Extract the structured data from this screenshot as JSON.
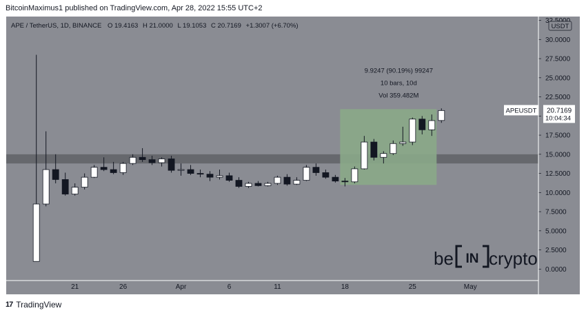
{
  "header": {
    "text": "BitcoinMaximus1 published on TradingView.com, Apr 28, 2022 15:55 UTC+2"
  },
  "footer": {
    "brand": "TradingView",
    "logo": "17"
  },
  "colors": {
    "background": "#8a8c93",
    "axis_panel": "#8a8c93",
    "zone": "#5f6166",
    "highlight": "#8aa888",
    "bull": "#ffffff",
    "bear": "#131722",
    "text": "#131722"
  },
  "chart_data": {
    "type": "candlestick",
    "symbol_line": {
      "title": "APE / TetherUS, 1D, BINANCE",
      "o_label": "O",
      "o_value": "19.4163",
      "h_label": "H",
      "h_value": "21.0000",
      "l_label": "L",
      "l_value": "19.1053",
      "c_label": "C",
      "c_value": "20.7169",
      "change": "+1.3007 (+6.70%)"
    },
    "y_axis": {
      "unit": "USDT",
      "range": [
        -1.5,
        33.0
      ],
      "ticks": [
        "0.0000",
        "2.5000",
        "5.0000",
        "7.5000",
        "10.0000",
        "12.5000",
        "15.0000",
        "17.5000",
        "20.0000",
        "22.5000",
        "25.0000",
        "27.5000",
        "30.0000",
        "32.5000"
      ],
      "tick_values": [
        0,
        2.5,
        5,
        7.5,
        10,
        12.5,
        15,
        17.5,
        20,
        22.5,
        25,
        27.5,
        30,
        32.5
      ]
    },
    "x_axis": {
      "dates": [
        "2022-03-17",
        "2022-03-18",
        "2022-03-19",
        "2022-03-20",
        "2022-03-21",
        "2022-03-22",
        "2022-03-23",
        "2022-03-24",
        "2022-03-25",
        "2022-03-26",
        "2022-03-27",
        "2022-03-28",
        "2022-03-29",
        "2022-03-30",
        "2022-03-31",
        "2022-04-01",
        "2022-04-02",
        "2022-04-03",
        "2022-04-04",
        "2022-04-05",
        "2022-04-06",
        "2022-04-07",
        "2022-04-08",
        "2022-04-09",
        "2022-04-10",
        "2022-04-11",
        "2022-04-12",
        "2022-04-13",
        "2022-04-14",
        "2022-04-15",
        "2022-04-16",
        "2022-04-17",
        "2022-04-18",
        "2022-04-19",
        "2022-04-20",
        "2022-04-21",
        "2022-04-22",
        "2022-04-23",
        "2022-04-24",
        "2022-04-25",
        "2022-04-26",
        "2022-04-27",
        "2022-04-28"
      ],
      "tick_labels": [
        "21",
        "26",
        "Apr",
        "6",
        "11",
        "18",
        "25",
        "May"
      ],
      "tick_dates": [
        "2022-03-21",
        "2022-03-26",
        "2022-04-01",
        "2022-04-06",
        "2022-04-11",
        "2022-04-18",
        "2022-04-25",
        "2022-05-01"
      ]
    },
    "candles": [
      {
        "date": "2022-03-17",
        "o": 1.0,
        "h": 28.0,
        "l": 1.0,
        "c": 8.5
      },
      {
        "date": "2022-03-18",
        "o": 8.5,
        "h": 18.0,
        "l": 8.2,
        "c": 13.0
      },
      {
        "date": "2022-03-19",
        "o": 13.0,
        "h": 15.0,
        "l": 11.2,
        "c": 11.7
      },
      {
        "date": "2022-03-20",
        "o": 11.7,
        "h": 12.6,
        "l": 9.6,
        "c": 9.8
      },
      {
        "date": "2022-03-21",
        "o": 9.8,
        "h": 11.2,
        "l": 9.6,
        "c": 10.7
      },
      {
        "date": "2022-03-22",
        "o": 10.7,
        "h": 12.5,
        "l": 10.4,
        "c": 12.0
      },
      {
        "date": "2022-03-23",
        "o": 12.0,
        "h": 13.6,
        "l": 11.9,
        "c": 13.3
      },
      {
        "date": "2022-03-24",
        "o": 13.3,
        "h": 14.6,
        "l": 12.8,
        "c": 13.0
      },
      {
        "date": "2022-03-25",
        "o": 13.0,
        "h": 14.0,
        "l": 12.4,
        "c": 12.6
      },
      {
        "date": "2022-03-26",
        "o": 12.6,
        "h": 14.0,
        "l": 12.3,
        "c": 13.8
      },
      {
        "date": "2022-03-27",
        "o": 13.8,
        "h": 15.0,
        "l": 13.6,
        "c": 14.6
      },
      {
        "date": "2022-03-28",
        "o": 14.6,
        "h": 15.8,
        "l": 14.0,
        "c": 14.3
      },
      {
        "date": "2022-03-29",
        "o": 14.3,
        "h": 14.8,
        "l": 13.6,
        "c": 13.9
      },
      {
        "date": "2022-03-30",
        "o": 13.9,
        "h": 14.6,
        "l": 13.4,
        "c": 14.4
      },
      {
        "date": "2022-03-31",
        "o": 14.4,
        "h": 14.8,
        "l": 12.6,
        "c": 12.9
      },
      {
        "date": "2022-04-01",
        "o": 12.9,
        "h": 13.8,
        "l": 12.2,
        "c": 13.0
      },
      {
        "date": "2022-04-02",
        "o": 13.0,
        "h": 13.6,
        "l": 12.3,
        "c": 12.5
      },
      {
        "date": "2022-04-03",
        "o": 12.5,
        "h": 13.0,
        "l": 12.0,
        "c": 12.4
      },
      {
        "date": "2022-04-04",
        "o": 12.4,
        "h": 12.8,
        "l": 11.5,
        "c": 12.0
      },
      {
        "date": "2022-04-05",
        "o": 12.0,
        "h": 13.0,
        "l": 11.7,
        "c": 12.2
      },
      {
        "date": "2022-04-06",
        "o": 12.2,
        "h": 12.6,
        "l": 11.4,
        "c": 11.6
      },
      {
        "date": "2022-04-07",
        "o": 11.6,
        "h": 12.0,
        "l": 10.6,
        "c": 10.8
      },
      {
        "date": "2022-04-08",
        "o": 10.8,
        "h": 11.4,
        "l": 10.6,
        "c": 11.2
      },
      {
        "date": "2022-04-09",
        "o": 11.2,
        "h": 11.5,
        "l": 10.8,
        "c": 10.9
      },
      {
        "date": "2022-04-10",
        "o": 10.9,
        "h": 11.4,
        "l": 10.8,
        "c": 11.2
      },
      {
        "date": "2022-04-11",
        "o": 11.2,
        "h": 12.2,
        "l": 11.0,
        "c": 12.0
      },
      {
        "date": "2022-04-12",
        "o": 12.0,
        "h": 12.4,
        "l": 10.9,
        "c": 11.1
      },
      {
        "date": "2022-04-13",
        "o": 11.1,
        "h": 12.0,
        "l": 11.0,
        "c": 11.6
      },
      {
        "date": "2022-04-14",
        "o": 11.6,
        "h": 13.6,
        "l": 11.5,
        "c": 13.3
      },
      {
        "date": "2022-04-15",
        "o": 13.3,
        "h": 13.8,
        "l": 12.2,
        "c": 12.6
      },
      {
        "date": "2022-04-16",
        "o": 12.6,
        "h": 13.0,
        "l": 11.8,
        "c": 12.0
      },
      {
        "date": "2022-04-17",
        "o": 12.0,
        "h": 12.3,
        "l": 11.3,
        "c": 11.5
      },
      {
        "date": "2022-04-18",
        "o": 11.5,
        "h": 11.9,
        "l": 10.8,
        "c": 11.4
      },
      {
        "date": "2022-04-19",
        "o": 11.4,
        "h": 13.4,
        "l": 11.2,
        "c": 13.1
      },
      {
        "date": "2022-04-20",
        "o": 13.1,
        "h": 17.4,
        "l": 13.0,
        "c": 16.6
      },
      {
        "date": "2022-04-21",
        "o": 16.6,
        "h": 17.0,
        "l": 14.2,
        "c": 14.6
      },
      {
        "date": "2022-04-22",
        "o": 14.6,
        "h": 15.4,
        "l": 13.8,
        "c": 15.1
      },
      {
        "date": "2022-04-23",
        "o": 15.1,
        "h": 16.8,
        "l": 14.9,
        "c": 16.4
      },
      {
        "date": "2022-04-24",
        "o": 16.4,
        "h": 18.6,
        "l": 16.1,
        "c": 16.6
      },
      {
        "date": "2022-04-25",
        "o": 16.6,
        "h": 19.8,
        "l": 16.2,
        "c": 19.6
      },
      {
        "date": "2022-04-26",
        "o": 19.6,
        "h": 20.0,
        "l": 17.6,
        "c": 18.2
      },
      {
        "date": "2022-04-27",
        "o": 18.2,
        "h": 20.2,
        "l": 17.4,
        "c": 19.4
      },
      {
        "date": "2022-04-28",
        "o": 19.4163,
        "h": 21.0,
        "l": 19.1053,
        "c": 20.7169
      }
    ],
    "zone": {
      "low": 13.8,
      "high": 15.0
    },
    "measure": {
      "date_from": "2022-04-18",
      "date_to": "2022-04-27",
      "price_from": 11.0,
      "price_to": 20.9,
      "label_lines": [
        "9.9247 (90.19%) 99247",
        "10 bars, 10d",
        "Vol 359.482M"
      ]
    },
    "price_tag": {
      "symbol": "APEUSDT",
      "price": "20.7169",
      "value": 20.7169,
      "countdown": "10:04:34"
    },
    "watermark": {
      "left": "be",
      "mid": "IN",
      "right": "crypto"
    }
  }
}
